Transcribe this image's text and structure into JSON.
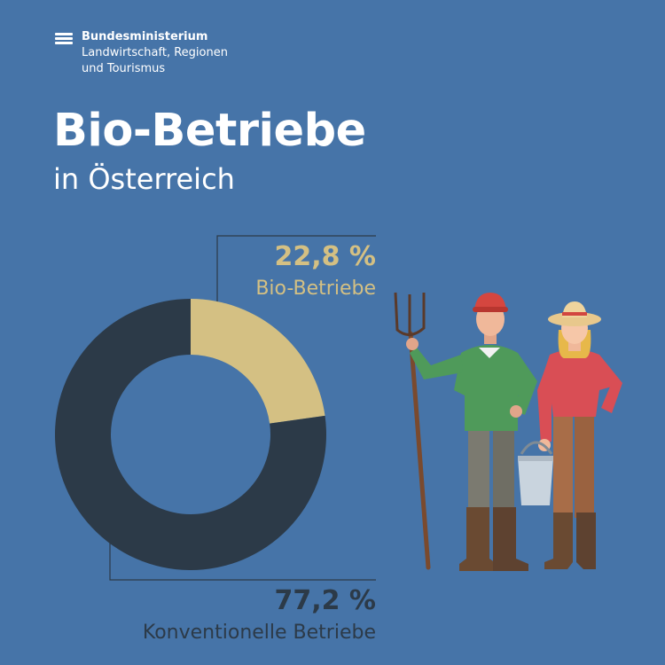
{
  "ministry": {
    "line1": "Bundesministerium",
    "line2": "Landwirtschaft, Regionen",
    "line3": "und Tourismus"
  },
  "title": "Bio-Betriebe",
  "subtitle": "in Österreich",
  "chart_data": {
    "type": "pie",
    "title": "Bio-Betriebe",
    "subtitle": "in Österreich",
    "slices": [
      {
        "label": "Bio-Betriebe",
        "value": 22.8,
        "value_label": "22,8 %",
        "color": "#d4c083"
      },
      {
        "label": "Konventionelle Betriebe",
        "value": 77.2,
        "value_label": "77,2 %",
        "color": "#2c3a48"
      }
    ]
  },
  "colors": {
    "background": "#4674a8",
    "bio": "#d4c083",
    "conventional": "#2c3a48",
    "text": "#ffffff"
  },
  "illustration": {
    "farmer_man": "farmer-with-pitchfork",
    "farmer_woman": "farmer-with-bucket"
  }
}
